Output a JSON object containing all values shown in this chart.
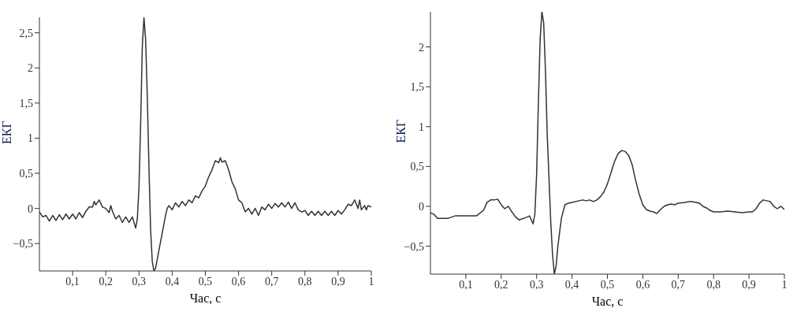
{
  "chart_data": [
    {
      "type": "line",
      "xlabel": "Час, с",
      "ylabel": "ЕКГ",
      "x": [
        0,
        0.01,
        0.02,
        0.03,
        0.04,
        0.05,
        0.06,
        0.07,
        0.08,
        0.09,
        0.1,
        0.11,
        0.12,
        0.13,
        0.14,
        0.15,
        0.16,
        0.165,
        0.17,
        0.18,
        0.19,
        0.2,
        0.21,
        0.215,
        0.22,
        0.23,
        0.24,
        0.25,
        0.26,
        0.27,
        0.28,
        0.29,
        0.295,
        0.3,
        0.305,
        0.31,
        0.315,
        0.32,
        0.325,
        0.33,
        0.335,
        0.34,
        0.345,
        0.35,
        0.36,
        0.37,
        0.38,
        0.385,
        0.39,
        0.4,
        0.41,
        0.42,
        0.43,
        0.44,
        0.45,
        0.46,
        0.47,
        0.48,
        0.49,
        0.5,
        0.51,
        0.52,
        0.53,
        0.54,
        0.545,
        0.55,
        0.56,
        0.57,
        0.58,
        0.59,
        0.6,
        0.61,
        0.62,
        0.63,
        0.64,
        0.65,
        0.66,
        0.67,
        0.68,
        0.69,
        0.7,
        0.71,
        0.72,
        0.73,
        0.74,
        0.75,
        0.76,
        0.77,
        0.78,
        0.79,
        0.8,
        0.81,
        0.82,
        0.83,
        0.84,
        0.85,
        0.86,
        0.87,
        0.88,
        0.89,
        0.9,
        0.91,
        0.92,
        0.93,
        0.94,
        0.95,
        0.96,
        0.965,
        0.97,
        0.98,
        0.985,
        0.99,
        1
      ],
      "series": [
        {
          "color": "#333333",
          "values": [
            -0.05,
            -0.12,
            -0.1,
            -0.18,
            -0.1,
            -0.17,
            -0.09,
            -0.16,
            -0.08,
            -0.15,
            -0.08,
            -0.15,
            -0.06,
            -0.13,
            -0.04,
            0.02,
            0.02,
            0.1,
            0.05,
            0.12,
            0.02,
            0,
            -0.06,
            0.04,
            -0.04,
            -0.15,
            -0.1,
            -0.2,
            -0.12,
            -0.2,
            -0.12,
            -0.28,
            -0.15,
            0.3,
            1.2,
            2.3,
            2.72,
            2.4,
            1.6,
            0.6,
            -0.3,
            -0.75,
            -0.89,
            -0.85,
            -0.6,
            -0.35,
            -0.1,
            0,
            0.04,
            -0.02,
            0.08,
            0.02,
            0.1,
            0.04,
            0.12,
            0.08,
            0.18,
            0.15,
            0.25,
            0.32,
            0.45,
            0.55,
            0.68,
            0.65,
            0.72,
            0.66,
            0.68,
            0.55,
            0.38,
            0.28,
            0.12,
            0.08,
            -0.05,
            0,
            -0.08,
            0,
            -0.1,
            0.02,
            -0.02,
            0.06,
            0,
            0.07,
            0.02,
            0.08,
            0.02,
            0.09,
            0,
            0.08,
            -0.02,
            -0.05,
            -0.03,
            -0.1,
            -0.04,
            -0.1,
            -0.04,
            -0.1,
            -0.04,
            -0.1,
            -0.04,
            -0.1,
            -0.03,
            -0.08,
            -0.02,
            0.06,
            0.04,
            0.12,
            0,
            0.12,
            -0.02,
            0.04,
            -0.02,
            0.04,
            0.02
          ]
        }
      ],
      "xlim": [
        0,
        1
      ],
      "xticks": [
        {
          "value": 0.1,
          "label": "0,1"
        },
        {
          "value": 0.2,
          "label": "0,2"
        },
        {
          "value": 0.3,
          "label": "0,3"
        },
        {
          "value": 0.4,
          "label": "0,4"
        },
        {
          "value": 0.5,
          "label": "0,5"
        },
        {
          "value": 0.6,
          "label": "0,6"
        },
        {
          "value": 0.7,
          "label": "0,7"
        },
        {
          "value": 0.8,
          "label": "0,8"
        },
        {
          "value": 0.9,
          "label": "0,9"
        },
        1
      ],
      "ylim": [
        -0.89,
        2.72
      ],
      "yticks": [
        {
          "value": -0.5,
          "label": "−0,5"
        },
        0,
        {
          "value": 0.5,
          "label": "0,5"
        },
        1,
        {
          "value": 1.5,
          "label": "1,5"
        },
        2,
        {
          "value": 2.5,
          "label": "2,5"
        }
      ],
      "grid": false,
      "legend": false
    },
    {
      "type": "line",
      "xlabel": "Час, с",
      "ylabel": "ЕКГ",
      "x": [
        0,
        0.01,
        0.02,
        0.05,
        0.07,
        0.1,
        0.13,
        0.15,
        0.16,
        0.17,
        0.18,
        0.19,
        0.2,
        0.21,
        0.22,
        0.23,
        0.24,
        0.25,
        0.27,
        0.28,
        0.29,
        0.295,
        0.3,
        0.305,
        0.31,
        0.315,
        0.32,
        0.325,
        0.33,
        0.34,
        0.345,
        0.35,
        0.355,
        0.36,
        0.37,
        0.38,
        0.39,
        0.4,
        0.42,
        0.43,
        0.44,
        0.45,
        0.46,
        0.47,
        0.48,
        0.49,
        0.5,
        0.51,
        0.52,
        0.53,
        0.54,
        0.55,
        0.56,
        0.57,
        0.58,
        0.59,
        0.6,
        0.61,
        0.62,
        0.63,
        0.64,
        0.65,
        0.66,
        0.67,
        0.68,
        0.69,
        0.7,
        0.72,
        0.73,
        0.74,
        0.75,
        0.76,
        0.77,
        0.78,
        0.79,
        0.8,
        0.82,
        0.84,
        0.86,
        0.88,
        0.9,
        0.91,
        0.92,
        0.93,
        0.94,
        0.95,
        0.96,
        0.97,
        0.98,
        0.99,
        1
      ],
      "series": [
        {
          "color": "#333333",
          "values": [
            -0.08,
            -0.1,
            -0.15,
            -0.15,
            -0.12,
            -0.12,
            -0.12,
            -0.05,
            0.05,
            0.08,
            0.08,
            0.09,
            0.02,
            -0.03,
            0,
            -0.07,
            -0.13,
            -0.17,
            -0.14,
            -0.12,
            -0.22,
            -0.1,
            0.4,
            1.3,
            2.1,
            2.44,
            2.3,
            1.7,
            0.9,
            -0.2,
            -0.6,
            -0.85,
            -0.75,
            -0.5,
            -0.15,
            0.02,
            0.04,
            0.05,
            0.07,
            0.08,
            0.07,
            0.08,
            0.06,
            0.08,
            0.12,
            0.18,
            0.28,
            0.42,
            0.56,
            0.66,
            0.7,
            0.69,
            0.64,
            0.52,
            0.32,
            0.15,
            0.02,
            -0.04,
            -0.06,
            -0.07,
            -0.09,
            -0.04,
            0,
            0.02,
            0.03,
            0.02,
            0.04,
            0.05,
            0.06,
            0.06,
            0.05,
            0.04,
            0,
            -0.02,
            -0.05,
            -0.07,
            -0.07,
            -0.06,
            -0.07,
            -0.08,
            -0.07,
            -0.07,
            -0.03,
            0.04,
            0.08,
            0.07,
            0.06,
            0,
            -0.03,
            0,
            -0.04
          ]
        }
      ],
      "xlim": [
        0,
        1
      ],
      "xticks": [
        {
          "value": 0.1,
          "label": "0,1"
        },
        {
          "value": 0.2,
          "label": "0,2"
        },
        {
          "value": 0.3,
          "label": "0,3"
        },
        {
          "value": 0.4,
          "label": "0,4"
        },
        {
          "value": 0.5,
          "label": "0,5"
        },
        {
          "value": 0.6,
          "label": "0,6"
        },
        {
          "value": 0.7,
          "label": "0,7"
        },
        {
          "value": 0.8,
          "label": "0,8"
        },
        {
          "value": 0.9,
          "label": "0,9"
        },
        1
      ],
      "ylim": [
        -0.85,
        2.44
      ],
      "yticks": [
        {
          "value": -0.5,
          "label": "−0,5"
        },
        0,
        {
          "value": 0.5,
          "label": "0,5"
        },
        1,
        {
          "value": 1.5,
          "label": "1,5"
        },
        2
      ],
      "grid": false,
      "legend": false
    }
  ]
}
